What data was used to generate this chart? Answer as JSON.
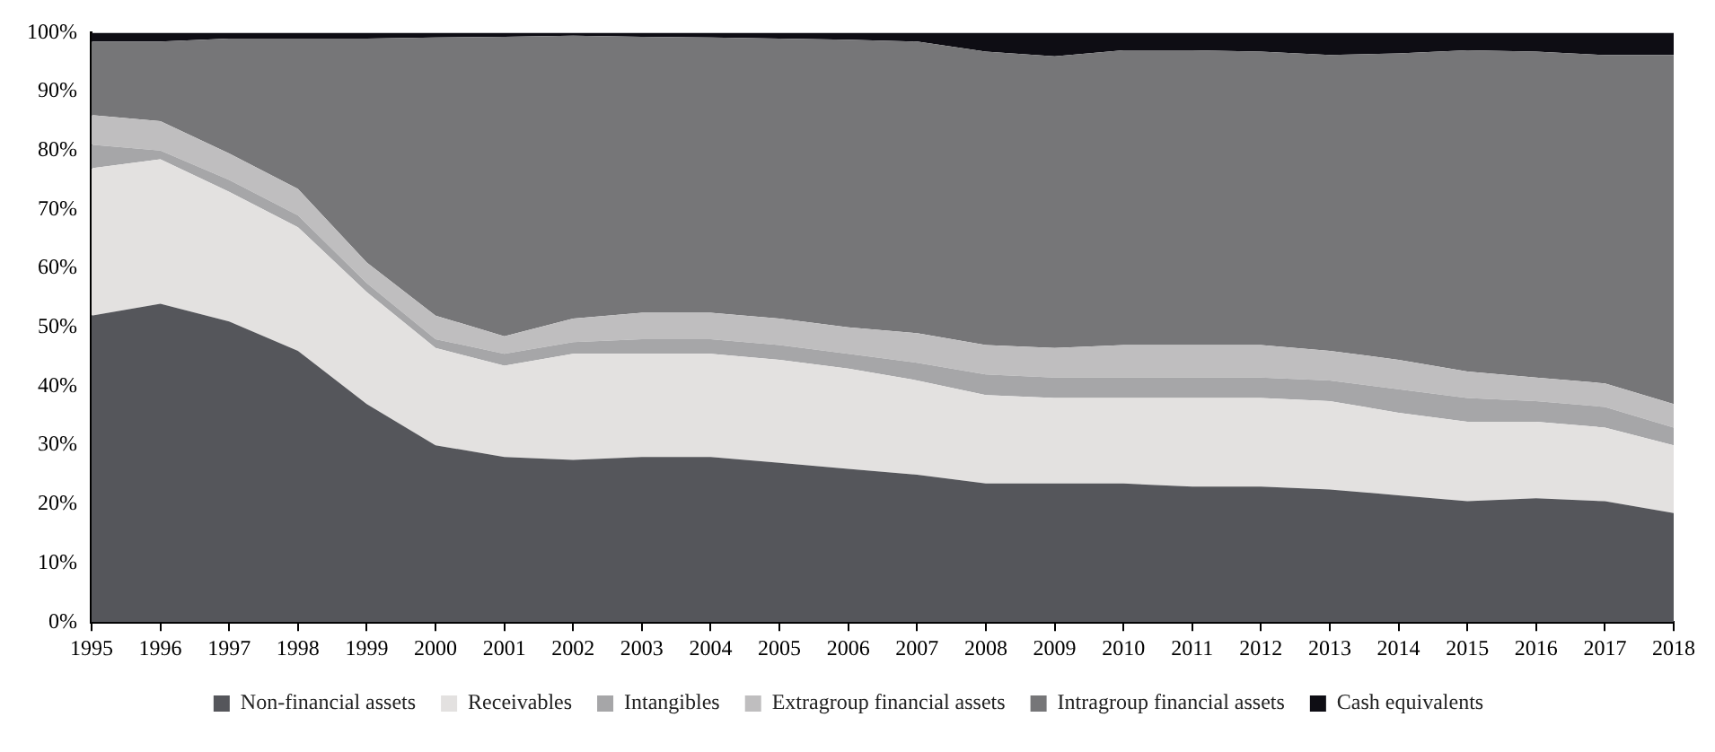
{
  "chart_data": {
    "type": "area",
    "stacked": true,
    "categories": [
      "1995",
      "1996",
      "1997",
      "1998",
      "1999",
      "2000",
      "2001",
      "2002",
      "2003",
      "2004",
      "2005",
      "2006",
      "2007",
      "2008",
      "2009",
      "2010",
      "2011",
      "2012",
      "2013",
      "2014",
      "2015",
      "2016",
      "2017",
      "2018"
    ],
    "ylim": [
      0,
      100
    ],
    "yticks": [
      {
        "value": 0,
        "label": "0%"
      },
      {
        "value": 10,
        "label": "10%"
      },
      {
        "value": 20,
        "label": "20%"
      },
      {
        "value": 30,
        "label": "30%"
      },
      {
        "value": 40,
        "label": "40%"
      },
      {
        "value": 50,
        "label": "50%"
      },
      {
        "value": 60,
        "label": "60%"
      },
      {
        "value": 70,
        "label": "70%"
      },
      {
        "value": 80,
        "label": "80%"
      },
      {
        "value": 90,
        "label": "90%"
      },
      {
        "value": 100,
        "label": "100%"
      }
    ],
    "legend": "bottom",
    "series": [
      {
        "name": "Non-financial assets",
        "color": "#55565b",
        "values": [
          52,
          54,
          51,
          46,
          37,
          30,
          28,
          27.5,
          28,
          28,
          27,
          26,
          25,
          23.5,
          23.5,
          23.5,
          23,
          23,
          22.5,
          21.5,
          20.5,
          21,
          20.5,
          18.5
        ]
      },
      {
        "name": "Receivables",
        "color": "#e3e1e0",
        "values": [
          25,
          24.5,
          22,
          21,
          19,
          16.5,
          15.5,
          18,
          17.5,
          17.5,
          17.5,
          17,
          16,
          15,
          14.5,
          14.5,
          15,
          15,
          15,
          14,
          13.5,
          13,
          12.5,
          11.5
        ]
      },
      {
        "name": "Intangibles",
        "color": "#a6a6a8",
        "values": [
          4,
          1.5,
          2,
          2,
          1.5,
          1.5,
          2,
          2,
          2.5,
          2.5,
          2.5,
          2.5,
          3,
          3.5,
          3.5,
          3.5,
          3.5,
          3.5,
          3.5,
          4,
          4,
          3.5,
          3.5,
          3
        ]
      },
      {
        "name": "Extragroup financial assets",
        "color": "#bfbebf",
        "values": [
          5,
          5,
          4.5,
          4.5,
          3.5,
          4,
          3,
          4,
          4.5,
          4.5,
          4.5,
          4.5,
          5,
          5,
          5,
          5.5,
          5.5,
          5.5,
          5,
          5,
          4.5,
          4,
          4,
          4
        ]
      },
      {
        "name": "Intragroup financial assets",
        "color": "#767678",
        "values": [
          12.5,
          13.5,
          19.5,
          25.5,
          38,
          47.2,
          50.8,
          48,
          46.8,
          46.7,
          47.5,
          48.8,
          49.5,
          49.8,
          49.5,
          50,
          50,
          49.8,
          50.2,
          52,
          54.5,
          55.3,
          55.7,
          59.2
        ]
      },
      {
        "name": "Cash equivalents",
        "color": "#0e0d14",
        "values": [
          1.5,
          1.5,
          1,
          1,
          1,
          0.8,
          0.7,
          0.5,
          0.7,
          0.8,
          1,
          1.2,
          1.5,
          3.2,
          4,
          3,
          3,
          3.2,
          3.8,
          3.5,
          3,
          3.2,
          3.8,
          3.8
        ]
      }
    ]
  }
}
